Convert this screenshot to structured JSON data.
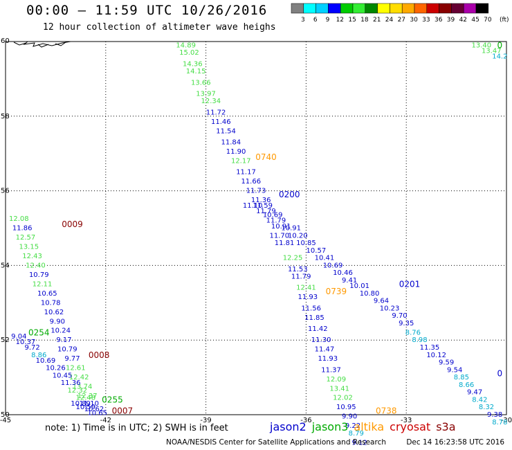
{
  "title": "00:00 – 11:59 UTC 10/26/2016",
  "subtitle": "12 hour collection of altimeter wave heighs",
  "color_scale": {
    "unit": "(ft)",
    "ticks": [
      "3",
      "6",
      "9",
      "12",
      "15",
      "18",
      "21",
      "24",
      "27",
      "30",
      "33",
      "36",
      "39",
      "42",
      "45",
      "70"
    ],
    "colors": [
      "#808080",
      "#00ffff",
      "#00d0ff",
      "#0000ff",
      "#00cc00",
      "#33ee33",
      "#008800",
      "#ffff00",
      "#ffdd00",
      "#ffaa00",
      "#ff6600",
      "#cc0000",
      "#880000",
      "#660033",
      "#aa00aa",
      "#000000"
    ]
  },
  "note": "note:  1) Time is in UTC;  2) SWH is in feet",
  "satellites": [
    {
      "name": "jason2",
      "color": "#0000cc"
    },
    {
      "name": "jason3",
      "color": "#00aa00"
    },
    {
      "name": "altika",
      "color": "#ff9900"
    },
    {
      "name": "cryosat",
      "color": "#cc0000"
    },
    {
      "name": "s3a",
      "color": "#880000"
    }
  ],
  "credit": "NOAA/NESDIS Center for Satellite Applications and Research",
  "timestamp": "Dec 14 16:23:58 UTC 2016",
  "colors": {
    "light_green": "#44dd44",
    "green": "#00aa00",
    "dark_blue": "#0000cc",
    "cyan": "#00aacc",
    "orange": "#ff9900",
    "maroon": "#880000"
  },
  "chart_data": {
    "type": "scatter",
    "xlim": [
      -45,
      -30
    ],
    "ylim": [
      50,
      60
    ],
    "xticks": [
      "-45",
      "-42",
      "-39",
      "-36",
      "-33",
      "-30"
    ],
    "yticks": [
      "50",
      "52",
      "54",
      "56",
      "58",
      "60"
    ],
    "grid": true,
    "pass_labels": [
      {
        "text": "0740",
        "x": -37.2,
        "y": 56.9,
        "color": "orange"
      },
      {
        "text": "0200",
        "x": -36.5,
        "y": 55.9,
        "color": "dark_blue"
      },
      {
        "text": "0009",
        "x": -43.0,
        "y": 55.1,
        "color": "maroon"
      },
      {
        "text": "0739",
        "x": -35.1,
        "y": 53.3,
        "color": "orange"
      },
      {
        "text": "0201",
        "x": -32.9,
        "y": 53.5,
        "color": "dark_blue"
      },
      {
        "text": "0254",
        "x": -44.0,
        "y": 52.2,
        "color": "green"
      },
      {
        "text": "0008",
        "x": -42.2,
        "y": 51.6,
        "color": "maroon"
      },
      {
        "text": "0255",
        "x": -41.8,
        "y": 50.4,
        "color": "green"
      },
      {
        "text": "0007",
        "x": -41.5,
        "y": 50.1,
        "color": "maroon"
      },
      {
        "text": "0738",
        "x": -33.6,
        "y": 50.1,
        "color": "orange"
      },
      {
        "text": "0",
        "x": -30.2,
        "y": 59.9,
        "color": "green"
      },
      {
        "text": "0",
        "x": -30.2,
        "y": 51.1,
        "color": "dark_blue"
      }
    ],
    "series": [
      {
        "color": "light_green",
        "points": [
          {
            "x": -39.6,
            "y": 59.9,
            "v": "14.89"
          },
          {
            "x": -39.5,
            "y": 59.7,
            "v": "15.02"
          },
          {
            "x": -39.4,
            "y": 59.4,
            "v": "14.36"
          },
          {
            "x": -39.3,
            "y": 59.2,
            "v": "14.15"
          },
          {
            "x": -39.15,
            "y": 58.9,
            "v": "13.66"
          },
          {
            "x": -39.0,
            "y": 58.6,
            "v": "13.97"
          },
          {
            "x": -38.85,
            "y": 58.4,
            "v": "12.34"
          }
        ]
      },
      {
        "color": "dark_blue",
        "points": [
          {
            "x": -38.7,
            "y": 58.1,
            "v": "11.72"
          },
          {
            "x": -38.55,
            "y": 57.85,
            "v": "11.46"
          },
          {
            "x": -38.4,
            "y": 57.6,
            "v": "11.54"
          },
          {
            "x": -38.25,
            "y": 57.3,
            "v": "11.84"
          },
          {
            "x": -38.1,
            "y": 57.05,
            "v": "11.90"
          }
        ]
      },
      {
        "color": "light_green",
        "points": [
          {
            "x": -37.95,
            "y": 56.8,
            "v": "12.17"
          }
        ]
      },
      {
        "color": "dark_blue",
        "points": [
          {
            "x": -37.8,
            "y": 56.5,
            "v": "11.17"
          },
          {
            "x": -37.65,
            "y": 56.25,
            "v": "11.66"
          },
          {
            "x": -37.5,
            "y": 56.0,
            "v": "11.73"
          },
          {
            "x": -37.35,
            "y": 55.75,
            "v": "11.36"
          },
          {
            "x": -37.6,
            "y": 55.6,
            "v": "11.10"
          },
          {
            "x": -37.3,
            "y": 55.6,
            "v": "11.59"
          },
          {
            "x": -37.2,
            "y": 55.45,
            "v": "11.79"
          },
          {
            "x": -37.0,
            "y": 55.35,
            "v": "10.69"
          },
          {
            "x": -36.9,
            "y": 55.2,
            "v": "11.79"
          },
          {
            "x": -36.75,
            "y": 55.05,
            "v": "10.91"
          },
          {
            "x": -36.8,
            "y": 54.8,
            "v": "11.70"
          },
          {
            "x": -36.45,
            "y": 55.0,
            "v": "10.91"
          },
          {
            "x": -36.25,
            "y": 54.8,
            "v": "10.20"
          },
          {
            "x": -36.65,
            "y": 54.6,
            "v": "11.81"
          },
          {
            "x": -36.0,
            "y": 54.6,
            "v": "10.85"
          },
          {
            "x": -35.7,
            "y": 54.4,
            "v": "10.57"
          },
          {
            "x": -35.45,
            "y": 54.2,
            "v": "10.41"
          },
          {
            "x": -35.2,
            "y": 54.0,
            "v": "10.69"
          },
          {
            "x": -34.9,
            "y": 53.8,
            "v": "10.46"
          },
          {
            "x": -34.7,
            "y": 53.6,
            "v": "9.41"
          },
          {
            "x": -34.4,
            "y": 53.45,
            "v": "10.01"
          },
          {
            "x": -34.1,
            "y": 53.25,
            "v": "10.80"
          },
          {
            "x": -33.75,
            "y": 53.05,
            "v": "9.64"
          },
          {
            "x": -33.5,
            "y": 52.85,
            "v": "10.23"
          },
          {
            "x": -33.2,
            "y": 52.65,
            "v": "9.70"
          },
          {
            "x": -33.0,
            "y": 52.45,
            "v": "9.35"
          }
        ]
      },
      {
        "color": "light_green",
        "points": [
          {
            "x": -36.4,
            "y": 54.2,
            "v": "12.25"
          }
        ]
      },
      {
        "color": "dark_blue",
        "points": [
          {
            "x": -36.25,
            "y": 53.9,
            "v": "11.53"
          },
          {
            "x": -36.15,
            "y": 53.7,
            "v": "11.79"
          }
        ]
      },
      {
        "color": "light_green",
        "points": [
          {
            "x": -36.0,
            "y": 53.4,
            "v": "12.41"
          }
        ]
      },
      {
        "color": "dark_blue",
        "points": [
          {
            "x": -35.95,
            "y": 53.15,
            "v": "11.93"
          },
          {
            "x": -35.85,
            "y": 52.85,
            "v": "11.56"
          },
          {
            "x": -35.75,
            "y": 52.6,
            "v": "11.85"
          },
          {
            "x": -35.65,
            "y": 52.3,
            "v": "11.42"
          },
          {
            "x": -35.55,
            "y": 52.0,
            "v": "11.30"
          },
          {
            "x": -35.45,
            "y": 51.75,
            "v": "11.47"
          },
          {
            "x": -35.35,
            "y": 51.5,
            "v": "11.93"
          },
          {
            "x": -35.25,
            "y": 51.2,
            "v": "11.37"
          }
        ]
      },
      {
        "color": "light_green",
        "points": [
          {
            "x": -35.1,
            "y": 50.95,
            "v": "12.09"
          },
          {
            "x": -35.0,
            "y": 50.7,
            "v": "13.41"
          },
          {
            "x": -34.9,
            "y": 50.45,
            "v": "12.02"
          }
        ]
      },
      {
        "color": "dark_blue",
        "points": [
          {
            "x": -34.8,
            "y": 50.2,
            "v": "10.95"
          },
          {
            "x": -34.7,
            "y": 49.95,
            "v": "9.90"
          },
          {
            "x": -34.6,
            "y": 49.7,
            "v": "9.22"
          }
        ]
      },
      {
        "color": "cyan",
        "points": [
          {
            "x": -34.5,
            "y": 49.5,
            "v": "8.79"
          }
        ]
      },
      {
        "color": "dark_blue",
        "points": [
          {
            "x": -34.4,
            "y": 49.25,
            "v": "9.12"
          }
        ]
      },
      {
        "color": "cyan",
        "points": [
          {
            "x": -32.8,
            "y": 52.2,
            "v": "8.76"
          },
          {
            "x": -32.6,
            "y": 52.0,
            "v": "8.98"
          }
        ]
      },
      {
        "color": "dark_blue",
        "points": [
          {
            "x": -32.3,
            "y": 51.8,
            "v": "11.35"
          },
          {
            "x": -32.1,
            "y": 51.6,
            "v": "10.12"
          },
          {
            "x": -31.8,
            "y": 51.4,
            "v": "9.59"
          },
          {
            "x": -31.55,
            "y": 51.2,
            "v": "9.54"
          }
        ]
      },
      {
        "color": "cyan",
        "points": [
          {
            "x": -31.35,
            "y": 51.0,
            "v": "8.85"
          },
          {
            "x": -31.2,
            "y": 50.8,
            "v": "8.66"
          }
        ]
      },
      {
        "color": "dark_blue",
        "points": [
          {
            "x": -30.95,
            "y": 50.6,
            "v": "9.47"
          }
        ]
      },
      {
        "color": "cyan",
        "points": [
          {
            "x": -30.8,
            "y": 50.4,
            "v": "8.42"
          },
          {
            "x": -30.6,
            "y": 50.2,
            "v": "8.32"
          }
        ]
      },
      {
        "color": "dark_blue",
        "points": [
          {
            "x": -30.35,
            "y": 50.0,
            "v": "9.38"
          }
        ]
      },
      {
        "color": "cyan",
        "points": [
          {
            "x": -30.2,
            "y": 49.8,
            "v": "8.78"
          }
        ]
      },
      {
        "color": "light_green",
        "points": [
          {
            "x": -44.6,
            "y": 55.25,
            "v": "12.08"
          },
          {
            "x": -44.4,
            "y": 54.75,
            "v": "12.57"
          },
          {
            "x": -44.3,
            "y": 54.5,
            "v": "13.15"
          },
          {
            "x": -44.2,
            "y": 54.25,
            "v": "12.43"
          },
          {
            "x": -44.1,
            "y": 54.0,
            "v": "12.40"
          }
        ]
      },
      {
        "color": "dark_blue",
        "points": [
          {
            "x": -44.5,
            "y": 55.0,
            "v": "11.86"
          },
          {
            "x": -44.0,
            "y": 53.75,
            "v": "10.79"
          }
        ]
      },
      {
        "color": "light_green",
        "points": [
          {
            "x": -43.9,
            "y": 53.5,
            "v": "12.11"
          }
        ]
      },
      {
        "color": "dark_blue",
        "points": [
          {
            "x": -43.75,
            "y": 53.25,
            "v": "10.65"
          },
          {
            "x": -43.65,
            "y": 53.0,
            "v": "10.78"
          },
          {
            "x": -43.55,
            "y": 52.75,
            "v": "10.62"
          },
          {
            "x": -43.45,
            "y": 52.5,
            "v": "9.90"
          },
          {
            "x": -43.35,
            "y": 52.25,
            "v": "10.24"
          },
          {
            "x": -43.25,
            "y": 52.0,
            "v": "9.17"
          },
          {
            "x": -43.15,
            "y": 51.75,
            "v": "10.79"
          },
          {
            "x": -43.0,
            "y": 51.5,
            "v": "9.77"
          }
        ]
      },
      {
        "color": "light_green",
        "points": [
          {
            "x": -42.9,
            "y": 51.25,
            "v": "12.61"
          },
          {
            "x": -42.8,
            "y": 51.0,
            "v": "12.42"
          },
          {
            "x": -42.7,
            "y": 50.75,
            "v": "13.74"
          },
          {
            "x": -42.55,
            "y": 50.5,
            "v": "12.37"
          }
        ]
      },
      {
        "color": "dark_blue",
        "points": [
          {
            "x": -44.6,
            "y": 52.1,
            "v": "9.04"
          },
          {
            "x": -44.4,
            "y": 51.95,
            "v": "10.37"
          },
          {
            "x": -44.2,
            "y": 51.8,
            "v": "9.72"
          }
        ]
      },
      {
        "color": "cyan",
        "points": [
          {
            "x": -44.0,
            "y": 51.6,
            "v": "8.86"
          }
        ]
      },
      {
        "color": "dark_blue",
        "points": [
          {
            "x": -43.8,
            "y": 51.45,
            "v": "10.69"
          },
          {
            "x": -43.5,
            "y": 51.25,
            "v": "10.26"
          },
          {
            "x": -43.3,
            "y": 51.05,
            "v": "10.45"
          },
          {
            "x": -43.05,
            "y": 50.85,
            "v": "11.36"
          }
        ]
      },
      {
        "color": "light_green",
        "points": [
          {
            "x": -42.85,
            "y": 50.65,
            "v": "12.32"
          },
          {
            "x": -42.6,
            "y": 50.45,
            "v": "12.48"
          }
        ]
      },
      {
        "color": "dark_blue",
        "points": [
          {
            "x": -42.75,
            "y": 50.3,
            "v": "10.89"
          },
          {
            "x": -42.5,
            "y": 50.3,
            "v": "11.10"
          },
          {
            "x": -42.6,
            "y": 50.2,
            "v": "10.59"
          },
          {
            "x": -42.35,
            "y": 50.15,
            "v": "10.62"
          },
          {
            "x": -42.25,
            "y": 50.05,
            "v": "10.65"
          }
        ]
      },
      {
        "color": "light_green",
        "points": [
          {
            "x": -30.75,
            "y": 59.9,
            "v": "13.40"
          },
          {
            "x": -30.45,
            "y": 59.75,
            "v": "13.47"
          }
        ]
      },
      {
        "color": "cyan",
        "points": [
          {
            "x": -30.2,
            "y": 59.6,
            "v": "14.2"
          }
        ]
      }
    ]
  }
}
